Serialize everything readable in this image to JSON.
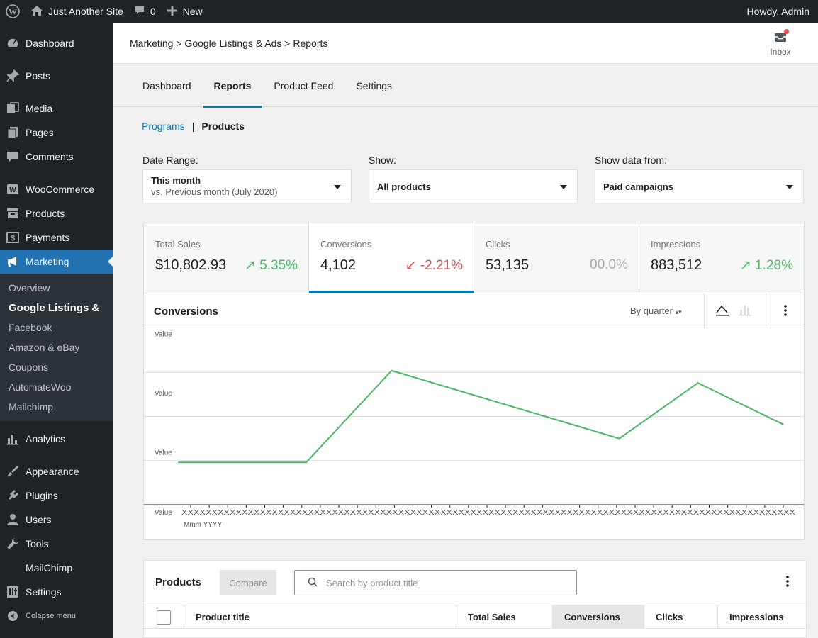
{
  "admin_bar": {
    "site_name": "Just Another Site",
    "comments_count": "0",
    "new_label": "New",
    "greeting": "Howdy, Admin"
  },
  "sidebar": {
    "items_top": [
      {
        "label": "Dashboard",
        "icon": "dashboard-icon"
      },
      {
        "label": "Posts",
        "icon": "pin-icon"
      },
      {
        "label": "Media",
        "icon": "media-icon"
      },
      {
        "label": "Pages",
        "icon": "pages-icon"
      },
      {
        "label": "Comments",
        "icon": "comments-icon"
      },
      {
        "label": "WooCommerce",
        "icon": "woocommerce-icon"
      },
      {
        "label": "Products",
        "icon": "archive-icon"
      },
      {
        "label": "Payments",
        "icon": "payments-icon"
      },
      {
        "label": "Marketing",
        "icon": "megaphone-icon"
      }
    ],
    "submenu": [
      "Overview",
      "Google Listings &",
      "Facebook",
      "Amazon & eBay",
      "Coupons",
      "AutomateWoo",
      "Mailchimp"
    ],
    "items_bottom": [
      {
        "label": "Analytics",
        "icon": "analytics-icon"
      },
      {
        "label": "Appearance",
        "icon": "appearance-icon"
      },
      {
        "label": "Plugins",
        "icon": "plugins-icon"
      },
      {
        "label": "Users",
        "icon": "users-icon"
      },
      {
        "label": "Tools",
        "icon": "tools-icon"
      },
      {
        "label": "MailChimp",
        "icon": ""
      },
      {
        "label": "Settings",
        "icon": "settings-icon"
      }
    ],
    "collapse_label": "Colapse menu"
  },
  "header": {
    "breadcrumb": "Marketing > Google Listings & Ads > Reports",
    "inbox_label": "Inbox"
  },
  "tabs": [
    "Dashboard",
    "Reports",
    "Product Feed",
    "Settings"
  ],
  "subnav": {
    "link": "Programs",
    "separator": "|",
    "current": "Products"
  },
  "filters": {
    "date_range": {
      "label": "Date Range:",
      "value": "This month",
      "compare": "vs. Previous month (July 2020)"
    },
    "show": {
      "label": "Show:",
      "value": "All products"
    },
    "source": {
      "label": "Show data from:",
      "value": "Paid campaigns"
    }
  },
  "summary": [
    {
      "label": "Total Sales",
      "value": "$10,802.93",
      "delta": "5.35%",
      "trend": "up"
    },
    {
      "label": "Conversions",
      "value": "4,102",
      "delta": "-2.21%",
      "trend": "down"
    },
    {
      "label": "Clicks",
      "value": "53,135",
      "delta": "00.0%",
      "trend": "flat"
    },
    {
      "label": "Impressions",
      "value": "883,512",
      "delta": "1.28%",
      "trend": "up"
    }
  ],
  "chart_panel": {
    "title": "Conversions",
    "interval": "By quarter"
  },
  "chart_data": {
    "type": "line",
    "y_tick_labels": [
      "Value",
      "Value",
      "Value",
      "Value"
    ],
    "x_tick_label": "XXXXXXXXXXXXXXXXXXXXXXXXXXXXXXXXXXXXXXXXXXXXXXXXXXXXXXXXXXXXXXXXXXXXXXXXXXXXXXXXXXXXXXXXXXXXXXXXXXXXXX",
    "x_sublabel": "Mmm YYYY",
    "series": [
      {
        "color": "#4ab866",
        "points": [
          [
            0,
            0.48
          ],
          [
            0.212,
            0.48
          ],
          [
            0.353,
            1.52
          ],
          [
            0.729,
            0.75
          ],
          [
            0.859,
            1.38
          ],
          [
            1.0,
            0.91
          ]
        ]
      }
    ],
    "ylim": [
      0,
      2.0
    ],
    "xlim": [
      0,
      1
    ],
    "grid": true
  },
  "table_panel": {
    "title": "Products",
    "compare_label": "Compare",
    "search_placeholder": "Search by product title",
    "columns": [
      "Product title",
      "Total Sales",
      "Conversions",
      "Clicks",
      "Impressions"
    ]
  }
}
